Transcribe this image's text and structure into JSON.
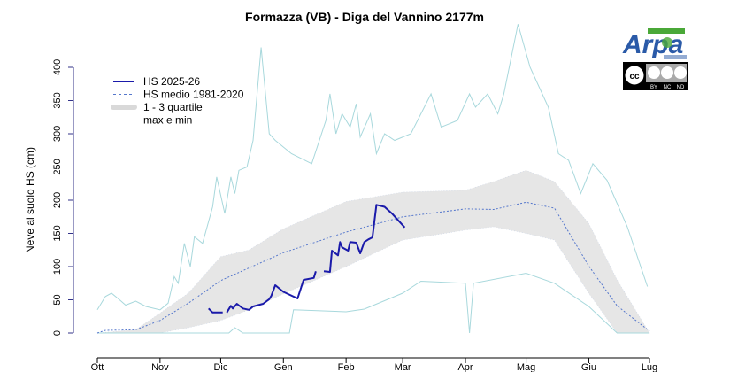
{
  "chart_data": {
    "type": "line",
    "title": "Formazza (VB) - Diga del Vannino 2177m",
    "xlabel": "",
    "ylabel": "Neve al suolo HS (cm)",
    "ylim": [
      0,
      400
    ],
    "yticks": [
      0,
      50,
      100,
      150,
      200,
      250,
      300,
      350,
      400
    ],
    "xlim": [
      "2025-10-01",
      "2026-07-01"
    ],
    "xticks": [
      {
        "date": "2025-10-01",
        "label": "Ott"
      },
      {
        "date": "2025-11-01",
        "label": "Nov"
      },
      {
        "date": "2025-12-01",
        "label": "Dic"
      },
      {
        "date": "2026-01-01",
        "label": "Gen"
      },
      {
        "date": "2026-02-01",
        "label": "Feb"
      },
      {
        "date": "2026-03-01",
        "label": "Mar"
      },
      {
        "date": "2026-04-01",
        "label": "Apr"
      },
      {
        "date": "2026-05-01",
        "label": "Mag"
      },
      {
        "date": "2026-06-01",
        "label": "Giu"
      },
      {
        "date": "2026-07-01",
        "label": "Lug"
      }
    ],
    "grid": false,
    "legend_position": "top-left",
    "legend": [
      {
        "label": "HS 2025-26",
        "style": "solid-thick",
        "color": "#1a1aaa"
      },
      {
        "label": "HS medio 1981-2020",
        "style": "dashed",
        "color": "#5577cc"
      },
      {
        "label": "1 - 3 quartile",
        "style": "band",
        "color": "#d9d9d9"
      },
      {
        "label": "max e min",
        "style": "solid-thin",
        "color": "#a8d8dc"
      }
    ],
    "series": [
      {
        "name": "HS 2025-26",
        "color": "#1a1aaa",
        "points": [
          [
            "2025-11-25",
            37
          ],
          [
            "2025-11-27",
            31
          ],
          [
            "2025-12-02",
            31
          ],
          [
            null,
            null
          ],
          [
            "2025-12-04",
            31
          ],
          [
            "2025-12-06",
            41
          ],
          [
            "2025-12-07",
            37
          ],
          [
            "2025-12-09",
            44
          ],
          [
            "2025-12-12",
            37
          ],
          [
            "2025-12-15",
            35
          ],
          [
            "2025-12-17",
            40
          ],
          [
            "2025-12-22",
            44
          ],
          [
            "2025-12-25",
            51
          ],
          [
            "2025-12-26",
            56
          ],
          [
            "2025-12-28",
            72
          ],
          [
            "2026-01-01",
            62
          ],
          [
            "2026-01-08",
            52
          ],
          [
            "2026-01-11",
            80
          ],
          [
            "2026-01-16",
            83
          ],
          [
            "2026-01-17",
            93
          ],
          [
            null,
            null
          ],
          [
            "2026-01-21",
            93
          ],
          [
            "2026-01-24",
            92
          ],
          [
            "2026-01-25",
            124
          ],
          [
            "2026-01-28",
            117
          ],
          [
            "2026-01-29",
            137
          ],
          [
            "2026-01-30",
            129
          ],
          [
            "2026-02-02",
            124
          ],
          [
            "2026-02-03",
            137
          ],
          [
            "2026-02-06",
            136
          ],
          [
            "2026-02-08",
            120
          ],
          [
            "2026-02-10",
            137
          ],
          [
            "2026-02-12",
            141
          ],
          [
            "2026-02-14",
            144
          ],
          [
            "2026-02-16",
            193
          ],
          [
            "2026-02-20",
            190
          ],
          [
            "2026-02-24",
            179
          ],
          [
            "2026-03-02",
            159
          ]
        ]
      },
      {
        "name": "HS medio 1981-2020",
        "color": "#5577cc",
        "points": [
          [
            "2025-10-01",
            0
          ],
          [
            "2025-10-05",
            4
          ],
          [
            "2025-10-20",
            5
          ],
          [
            "2025-11-01",
            19
          ],
          [
            "2025-11-15",
            45
          ],
          [
            "2025-12-01",
            79
          ],
          [
            "2025-12-15",
            98
          ],
          [
            "2026-01-01",
            121
          ],
          [
            "2026-02-01",
            152
          ],
          [
            "2026-03-01",
            175
          ],
          [
            "2026-04-01",
            187
          ],
          [
            "2026-04-15",
            186
          ],
          [
            "2026-05-01",
            197
          ],
          [
            "2026-05-15",
            188
          ],
          [
            "2026-06-01",
            101
          ],
          [
            "2026-06-15",
            41
          ],
          [
            "2026-07-01",
            3
          ]
        ]
      },
      {
        "name": "1 - 3 quartile",
        "color": "#e6e6e6",
        "points_q1_q3": [
          [
            "2025-10-01",
            0,
            0
          ],
          [
            "2025-10-20",
            0,
            5
          ],
          [
            "2025-11-01",
            0,
            30
          ],
          [
            "2025-11-15",
            8,
            60
          ],
          [
            "2025-12-01",
            19,
            115
          ],
          [
            "2025-12-15",
            35,
            125
          ],
          [
            "2026-01-01",
            59,
            157
          ],
          [
            "2026-02-01",
            100,
            198
          ],
          [
            "2026-03-01",
            140,
            212
          ],
          [
            "2026-04-01",
            155,
            215
          ],
          [
            "2026-04-15",
            160,
            228
          ],
          [
            "2026-05-01",
            150,
            245
          ],
          [
            "2026-05-15",
            140,
            228
          ],
          [
            "2026-06-01",
            60,
            165
          ],
          [
            "2026-06-15",
            0,
            80
          ],
          [
            "2026-07-01",
            0,
            0
          ]
        ]
      },
      {
        "name": "max e min",
        "color": "#a8d8dc",
        "max": [
          [
            "2025-10-01",
            35
          ],
          [
            "2025-10-05",
            55
          ],
          [
            "2025-10-08",
            60
          ],
          [
            "2025-10-12",
            50
          ],
          [
            "2025-10-15",
            42
          ],
          [
            "2025-10-20",
            48
          ],
          [
            "2025-10-25",
            40
          ],
          [
            "2025-11-01",
            35
          ],
          [
            "2025-11-05",
            45
          ],
          [
            "2025-11-08",
            85
          ],
          [
            "2025-11-10",
            75
          ],
          [
            "2025-11-13",
            135
          ],
          [
            "2025-11-16",
            100
          ],
          [
            "2025-11-18",
            145
          ],
          [
            "2025-11-22",
            135
          ],
          [
            "2025-11-27",
            190
          ],
          [
            "2025-11-29",
            235
          ],
          [
            "2025-12-03",
            180
          ],
          [
            "2025-12-06",
            235
          ],
          [
            "2025-12-08",
            210
          ],
          [
            "2025-12-10",
            245
          ],
          [
            "2025-12-14",
            250
          ],
          [
            "2025-12-17",
            290
          ],
          [
            "2025-12-21",
            430
          ],
          [
            "2025-12-25",
            300
          ],
          [
            "2025-12-28",
            290
          ],
          [
            "2026-01-05",
            270
          ],
          [
            "2026-01-15",
            255
          ],
          [
            "2026-01-22",
            320
          ],
          [
            "2026-01-24",
            360
          ],
          [
            "2026-01-27",
            300
          ],
          [
            "2026-01-30",
            330
          ],
          [
            "2026-02-03",
            310
          ],
          [
            "2026-02-06",
            345
          ],
          [
            "2026-02-08",
            295
          ],
          [
            "2026-02-13",
            330
          ],
          [
            "2026-02-16",
            270
          ],
          [
            "2026-02-20",
            300
          ],
          [
            "2026-02-25",
            290
          ],
          [
            "2026-03-05",
            300
          ],
          [
            "2026-03-10",
            330
          ],
          [
            "2026-03-15",
            360
          ],
          [
            "2026-03-20",
            310
          ],
          [
            "2026-03-28",
            320
          ],
          [
            "2026-04-03",
            360
          ],
          [
            "2026-04-06",
            340
          ],
          [
            "2026-04-12",
            360
          ],
          [
            "2026-04-17",
            330
          ],
          [
            "2026-04-20",
            360
          ],
          [
            "2026-04-27",
            465
          ],
          [
            "2026-05-03",
            400
          ],
          [
            "2026-05-12",
            340
          ],
          [
            "2026-05-17",
            270
          ],
          [
            "2026-05-22",
            260
          ],
          [
            "2026-05-28",
            210
          ],
          [
            "2026-06-03",
            255
          ],
          [
            "2026-06-10",
            230
          ],
          [
            "2026-06-20",
            160
          ],
          [
            "2026-06-30",
            70
          ]
        ],
        "min": [
          [
            "2025-10-01",
            0
          ],
          [
            "2025-12-05",
            0
          ],
          [
            "2025-12-08",
            8
          ],
          [
            "2025-12-12",
            0
          ],
          [
            "2026-01-04",
            0
          ],
          [
            "2026-01-06",
            35
          ],
          [
            "2026-02-01",
            32
          ],
          [
            "2026-02-10",
            36
          ],
          [
            "2026-03-01",
            60
          ],
          [
            "2026-03-10",
            78
          ],
          [
            "2026-04-01",
            75
          ],
          [
            "2026-04-03",
            0
          ],
          [
            "2026-04-05",
            75
          ],
          [
            "2026-05-01",
            90
          ],
          [
            "2026-05-15",
            75
          ],
          [
            "2026-06-01",
            40
          ],
          [
            "2026-06-15",
            0
          ],
          [
            "2026-07-01",
            0
          ]
        ]
      }
    ]
  },
  "logo": {
    "text": "Arpa",
    "banner": "PIEMONTE",
    "subtitle": "Agenzia Regionale per la Protezione Ambientale",
    "license": [
      "BY",
      "NC",
      "ND"
    ]
  }
}
